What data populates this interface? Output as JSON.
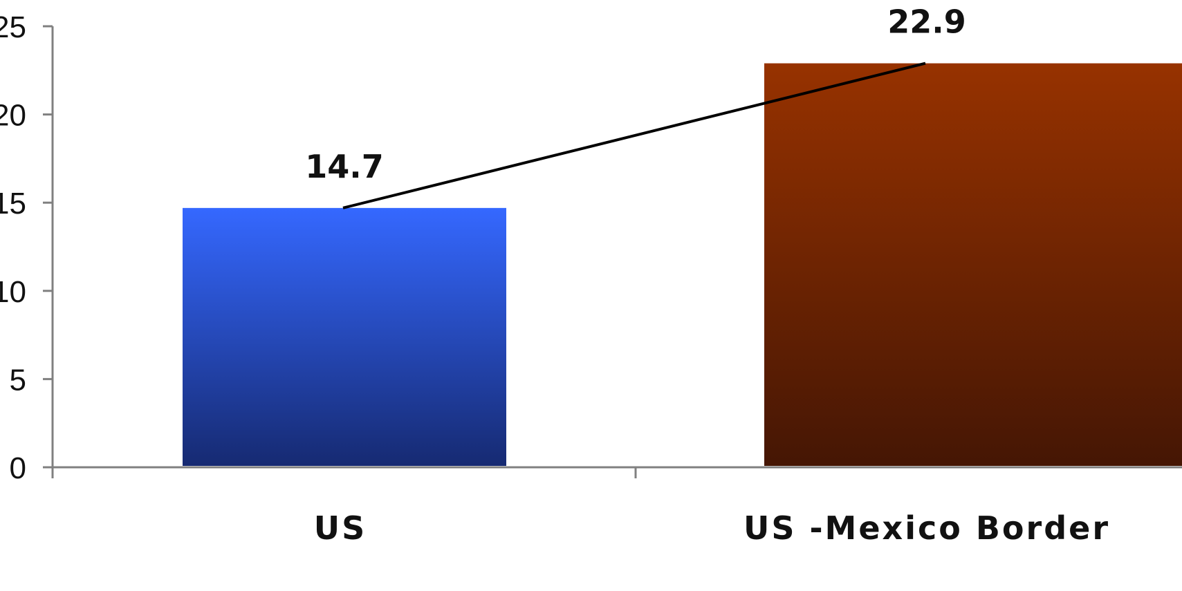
{
  "chart_data": {
    "type": "bar",
    "categories": [
      "US",
      "US -Mexico Border"
    ],
    "values": [
      14.7,
      22.9
    ],
    "data_labels": [
      "14.7",
      "22.9"
    ],
    "yticks": [
      "0",
      "5",
      "10",
      "15",
      "20",
      "25"
    ],
    "ylim": [
      0,
      25
    ],
    "grid": false,
    "legend": "none",
    "overlay_line": true,
    "colors": {
      "bar_0_top": "#3568ff",
      "bar_0_bottom": "#162a72",
      "bar_1_top": "#973200",
      "bar_1_bottom": "#451604",
      "axis": "#808080",
      "line": "#000000"
    }
  }
}
